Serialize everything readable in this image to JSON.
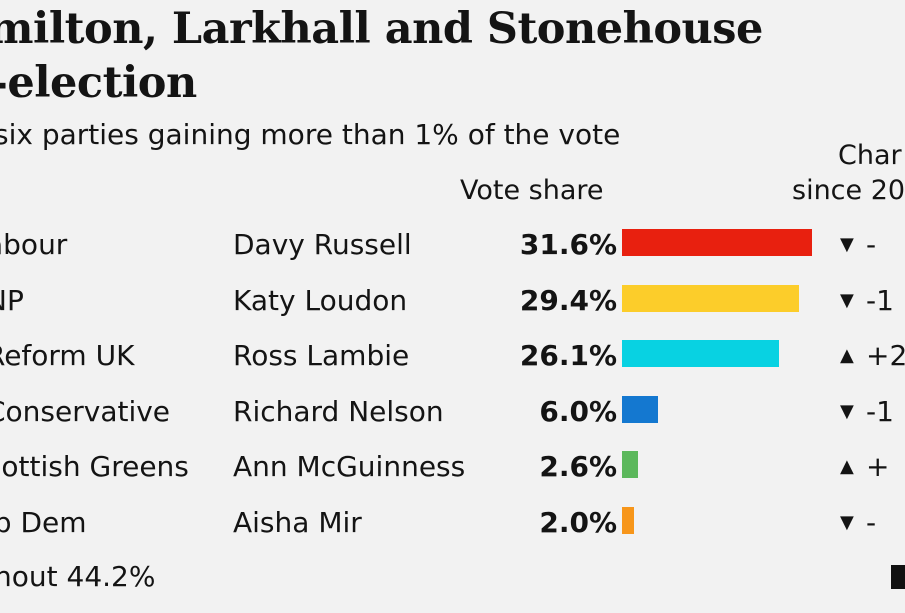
{
  "title_line1": "milton, Larkhall and Stonehouse",
  "title_line2": "-election",
  "subtitle": "six parties gaining more than 1% of the vote",
  "header_vote_share": "Vote share",
  "header_change_line1": "Char",
  "header_change_line2": "since 20",
  "turnout": "nout 44.2%",
  "chart_data": {
    "type": "bar",
    "orientation": "horizontal",
    "title": "milton, Larkhall and Stonehouse -election",
    "subtitle": "six parties gaining more than 1% of the vote",
    "categories": [
      "abour",
      "NP",
      "Reform UK",
      "Conservative",
      "cottish Greens",
      "ib Dem"
    ],
    "candidates": [
      "Davy Russell",
      "Katy Loudon",
      "Ross Lambie",
      "Richard Nelson",
      "Ann McGuinness",
      "Aisha Mir"
    ],
    "values": [
      31.6,
      29.4,
      26.1,
      6.0,
      2.6,
      2.0
    ],
    "value_labels": [
      "31.6%",
      "29.4%",
      "26.1%",
      "6.0%",
      "2.6%",
      "2.0%"
    ],
    "colors": [
      "#e8200f",
      "#fccd2a",
      "#08d2e2",
      "#1478d0",
      "#5cb85c",
      "#f7961a"
    ],
    "change_direction": [
      "down",
      "down",
      "up",
      "down",
      "up",
      "down"
    ],
    "change_labels": [
      "-",
      "-1",
      "+2",
      "-1",
      "+",
      "-"
    ],
    "xlim": [
      0,
      31.6
    ]
  }
}
